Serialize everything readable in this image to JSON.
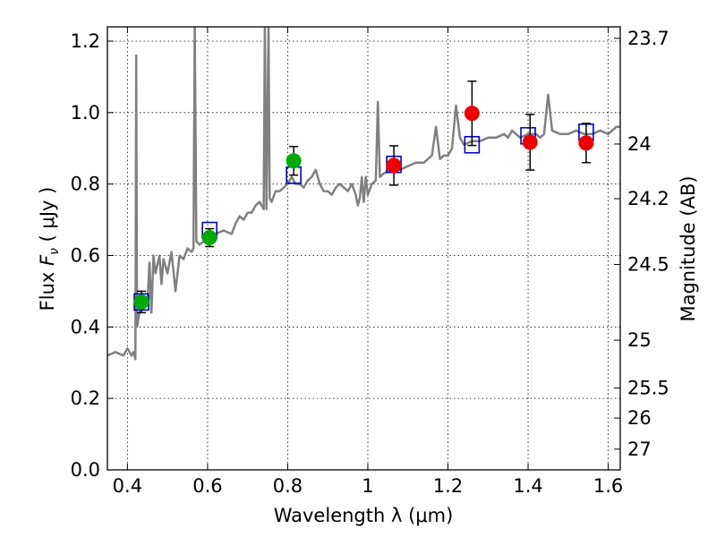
{
  "chart_data": {
    "type": "scatter",
    "xlabel": "Wavelength  λ (μm)",
    "ylabel": "Flux  F_ν  ( μJy )",
    "ylabel_parts": {
      "prefix": "Flux  ",
      "symbol": "F",
      "subscript": "ν",
      "unit": "  ( μJy )"
    },
    "y2label": "Magnitude (AB)",
    "xlim": [
      0.35,
      1.63
    ],
    "ylim": [
      0.0,
      1.24
    ],
    "grid": true,
    "x_ticks": [
      0.4,
      0.6,
      0.8,
      1.0,
      1.2,
      1.4,
      1.6
    ],
    "x_tick_labels": [
      "0.4",
      "0.6",
      "0.8",
      "1",
      "1.2",
      "1.4",
      "1.6"
    ],
    "y_ticks": [
      0.0,
      0.2,
      0.4,
      0.6,
      0.8,
      1.0,
      1.2
    ],
    "y_tick_labels": [
      "0.0",
      "0.2",
      "0.4",
      "0.6",
      "0.8",
      "1.0",
      "1.2"
    ],
    "y2_ticks": [
      {
        "label": "23.7",
        "flux": 1.208
      },
      {
        "label": "24",
        "flux": 0.912
      },
      {
        "label": "24.2",
        "flux": 0.759
      },
      {
        "label": "24.5",
        "flux": 0.575
      },
      {
        "label": "25",
        "flux": 0.363
      },
      {
        "label": "25.5",
        "flux": 0.229
      },
      {
        "label": "26",
        "flux": 0.145
      },
      {
        "label": "27",
        "flux": 0.058
      }
    ],
    "series": [
      {
        "type": "line",
        "color": "#808080",
        "points": [
          [
            0.35,
            0.32
          ],
          [
            0.37,
            0.33
          ],
          [
            0.39,
            0.32
          ],
          [
            0.4,
            0.34
          ],
          [
            0.41,
            0.32
          ],
          [
            0.415,
            0.33
          ],
          [
            0.42,
            0.31
          ],
          [
            0.422,
            1.16
          ],
          [
            0.424,
            0.4
          ],
          [
            0.43,
            0.44
          ],
          [
            0.44,
            0.46
          ],
          [
            0.45,
            0.47
          ],
          [
            0.455,
            0.58
          ],
          [
            0.46,
            0.44
          ],
          [
            0.465,
            0.6
          ],
          [
            0.47,
            0.55
          ],
          [
            0.48,
            0.6
          ],
          [
            0.485,
            0.52
          ],
          [
            0.49,
            0.59
          ],
          [
            0.5,
            0.55
          ],
          [
            0.51,
            0.61
          ],
          [
            0.52,
            0.5
          ],
          [
            0.53,
            0.6
          ],
          [
            0.54,
            0.59
          ],
          [
            0.55,
            0.62
          ],
          [
            0.56,
            0.61
          ],
          [
            0.565,
            0.62
          ],
          [
            0.568,
            1.24
          ],
          [
            0.572,
            0.64
          ],
          [
            0.58,
            0.63
          ],
          [
            0.6,
            0.65
          ],
          [
            0.62,
            0.66
          ],
          [
            0.64,
            0.67
          ],
          [
            0.66,
            0.66
          ],
          [
            0.67,
            0.69
          ],
          [
            0.68,
            0.71
          ],
          [
            0.69,
            0.7
          ],
          [
            0.7,
            0.72
          ],
          [
            0.71,
            0.72
          ],
          [
            0.72,
            0.74
          ],
          [
            0.73,
            0.75
          ],
          [
            0.74,
            0.73
          ],
          [
            0.743,
            1.24
          ],
          [
            0.747,
            0.73
          ],
          [
            0.752,
            1.24
          ],
          [
            0.755,
            0.76
          ],
          [
            0.76,
            0.75
          ],
          [
            0.77,
            0.78
          ],
          [
            0.78,
            0.78
          ],
          [
            0.79,
            0.79
          ],
          [
            0.8,
            0.8
          ],
          [
            0.81,
            0.82
          ],
          [
            0.82,
            0.8
          ],
          [
            0.83,
            0.8
          ],
          [
            0.84,
            0.79
          ],
          [
            0.85,
            0.81
          ],
          [
            0.86,
            0.82
          ],
          [
            0.87,
            0.84
          ],
          [
            0.88,
            0.8
          ],
          [
            0.89,
            0.78
          ],
          [
            0.9,
            0.78
          ],
          [
            0.91,
            0.77
          ],
          [
            0.92,
            0.79
          ],
          [
            0.93,
            0.8
          ],
          [
            0.94,
            0.79
          ],
          [
            0.95,
            0.78
          ],
          [
            0.96,
            0.8
          ],
          [
            0.97,
            0.77
          ],
          [
            0.975,
            0.74
          ],
          [
            0.98,
            0.76
          ],
          [
            0.985,
            0.82
          ],
          [
            0.99,
            0.75
          ],
          [
            0.995,
            0.82
          ],
          [
            1.0,
            0.77
          ],
          [
            1.01,
            0.8
          ],
          [
            1.02,
            0.81
          ],
          [
            1.025,
            1.03
          ],
          [
            1.03,
            0.82
          ],
          [
            1.04,
            0.83
          ],
          [
            1.06,
            0.84
          ],
          [
            1.08,
            0.84
          ],
          [
            1.1,
            0.85
          ],
          [
            1.12,
            0.86
          ],
          [
            1.14,
            0.86
          ],
          [
            1.16,
            0.88
          ],
          [
            1.17,
            0.96
          ],
          [
            1.18,
            0.87
          ],
          [
            1.19,
            0.88
          ],
          [
            1.2,
            0.88
          ],
          [
            1.21,
            0.9
          ],
          [
            1.22,
            1.02
          ],
          [
            1.23,
            0.93
          ],
          [
            1.24,
            0.91
          ],
          [
            1.26,
            0.92
          ],
          [
            1.28,
            0.92
          ],
          [
            1.3,
            0.93
          ],
          [
            1.32,
            0.93
          ],
          [
            1.34,
            0.94
          ],
          [
            1.35,
            0.93
          ],
          [
            1.36,
            0.95
          ],
          [
            1.38,
            0.93
          ],
          [
            1.4,
            0.94
          ],
          [
            1.42,
            0.94
          ],
          [
            1.43,
            0.93
          ],
          [
            1.44,
            0.94
          ],
          [
            1.45,
            1.05
          ],
          [
            1.46,
            0.95
          ],
          [
            1.48,
            0.94
          ],
          [
            1.5,
            0.94
          ],
          [
            1.52,
            0.95
          ],
          [
            1.54,
            0.94
          ],
          [
            1.56,
            0.94
          ],
          [
            1.58,
            0.95
          ],
          [
            1.6,
            0.94
          ],
          [
            1.62,
            0.96
          ],
          [
            1.63,
            0.96
          ]
        ]
      },
      {
        "type": "squares",
        "color": "#0000cc",
        "points": [
          [
            0.435,
            0.47
          ],
          [
            0.605,
            0.67
          ],
          [
            0.815,
            0.825
          ],
          [
            1.065,
            0.855
          ],
          [
            1.26,
            0.91
          ],
          [
            1.4,
            0.935
          ],
          [
            1.545,
            0.945
          ]
        ]
      },
      {
        "type": "errorbar",
        "color": "#00aa00",
        "points": [
          [
            0.435,
            0.47,
            0.03
          ],
          [
            0.605,
            0.65,
            0.025
          ],
          [
            0.815,
            0.865,
            0.04
          ]
        ]
      },
      {
        "type": "errorbar",
        "color": "#ee0000",
        "points": [
          [
            1.065,
            0.852,
            0.055
          ],
          [
            1.26,
            0.998,
            0.09
          ],
          [
            1.405,
            0.917,
            0.078
          ],
          [
            1.545,
            0.915,
            0.055
          ]
        ]
      }
    ]
  }
}
